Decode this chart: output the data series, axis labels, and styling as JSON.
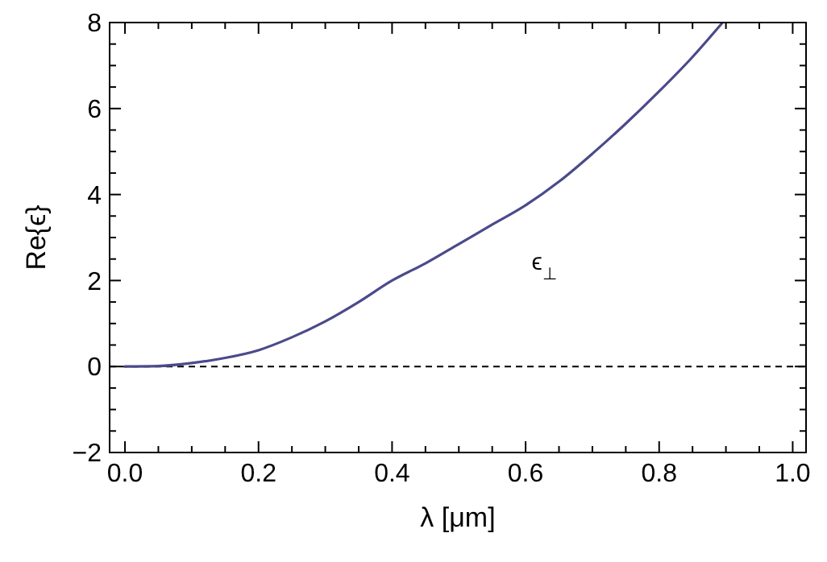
{
  "chart_data": {
    "type": "line",
    "xlabel": "λ [μm]",
    "ylabel": "Re{ϵ}",
    "x": [
      0,
      0.05,
      0.1,
      0.15,
      0.2,
      0.25,
      0.3,
      0.35,
      0.4,
      0.45,
      0.5,
      0.55,
      0.6,
      0.65,
      0.7,
      0.75,
      0.8,
      0.85,
      0.895
    ],
    "series": [
      {
        "name": "ϵ$_{⊥}$",
        "color": "#4b4a8c",
        "values": [
          0,
          0.01,
          0.08,
          0.2,
          0.38,
          0.68,
          1.05,
          1.5,
          2.0,
          2.4,
          2.85,
          3.3,
          3.75,
          4.3,
          4.95,
          5.65,
          6.4,
          7.2,
          8.0
        ]
      }
    ],
    "xlim": [
      -0.023,
      1.02
    ],
    "ylim": [
      -2,
      8
    ],
    "xticks": [
      {
        "value": 0,
        "label": "0.0"
      },
      {
        "value": 0.05,
        "label": null
      },
      {
        "value": 0.1,
        "label": null
      },
      {
        "value": 0.15,
        "label": null
      },
      {
        "value": 0.2,
        "label": "0.2"
      },
      {
        "value": 0.25,
        "label": null
      },
      {
        "value": 0.3,
        "label": null
      },
      {
        "value": 0.35,
        "label": null
      },
      {
        "value": 0.4,
        "label": "0.4"
      },
      {
        "value": 0.45,
        "label": null
      },
      {
        "value": 0.5,
        "label": null
      },
      {
        "value": 0.55,
        "label": null
      },
      {
        "value": 0.6,
        "label": "0.6"
      },
      {
        "value": 0.65,
        "label": null
      },
      {
        "value": 0.7,
        "label": null
      },
      {
        "value": 0.75,
        "label": null
      },
      {
        "value": 0.8,
        "label": "0.8"
      },
      {
        "value": 0.85,
        "label": null
      },
      {
        "value": 0.9,
        "label": null
      },
      {
        "value": 0.95,
        "label": null
      },
      {
        "value": 1,
        "label": "1.0"
      }
    ],
    "yticks": [
      {
        "value": -2,
        "label": "−2"
      },
      {
        "value": -1.5,
        "label": null
      },
      {
        "value": -1,
        "label": null
      },
      {
        "value": -0.5,
        "label": null
      },
      0,
      {
        "value": 0.5,
        "label": null
      },
      {
        "value": 1,
        "label": null
      },
      {
        "value": 1.5,
        "label": null
      },
      2,
      {
        "value": 2.5,
        "label": null
      },
      {
        "value": 3,
        "label": null
      },
      {
        "value": 3.5,
        "label": null
      },
      4,
      {
        "value": 4.5,
        "label": null
      },
      {
        "value": 5,
        "label": null
      },
      {
        "value": 5.5,
        "label": null
      },
      6,
      {
        "value": 6.5,
        "label": null
      },
      {
        "value": 7,
        "label": null
      },
      {
        "value": 7.5,
        "label": null
      },
      8
    ],
    "ref_lines": [
      {
        "axis": "y",
        "value": 0,
        "line_style": "dashed",
        "color": "#000000"
      }
    ],
    "grid": false,
    "marker": "none",
    "line_style": "solid"
  }
}
